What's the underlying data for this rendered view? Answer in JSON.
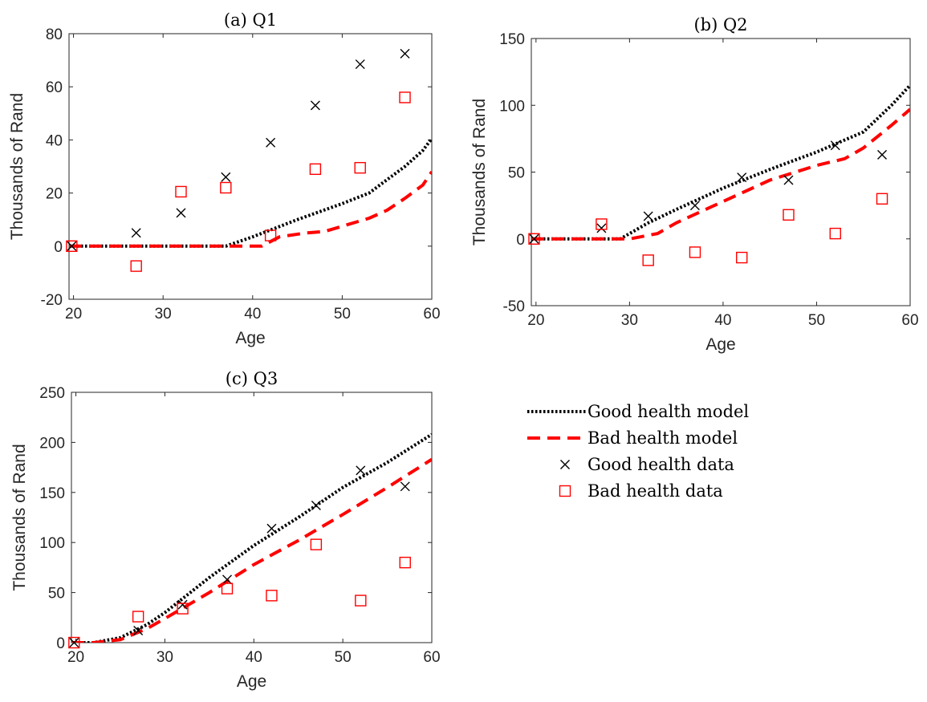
{
  "legend": [
    {
      "key": "good_model",
      "label": "Good health model",
      "style": "dotted",
      "color": "#000000"
    },
    {
      "key": "bad_model",
      "label": "Bad health model",
      "style": "dashed",
      "color": "#ff0000"
    },
    {
      "key": "good_data",
      "label": "Good health data",
      "marker": "x",
      "color": "#000000"
    },
    {
      "key": "bad_data",
      "label": "Bad health data",
      "marker": "square",
      "color": "#ff0000"
    }
  ],
  "chart_data": [
    {
      "type": "line",
      "title": "(a) Q1",
      "xlabel": "Age",
      "ylabel": "Thousands of Rand",
      "xlim": [
        19.5,
        60
      ],
      "ylim": [
        -20,
        80
      ],
      "xticks": [
        20,
        30,
        40,
        50,
        60
      ],
      "yticks": [
        -20,
        0,
        20,
        40,
        60,
        80
      ],
      "grid": false,
      "series": [
        {
          "name": "Good health model",
          "kind": "line",
          "x": [
            19.5,
            37,
            40,
            45,
            50,
            53,
            55,
            57,
            59,
            60
          ],
          "y": [
            0,
            0,
            3.5,
            10,
            16,
            20,
            25,
            30,
            36,
            40.5
          ]
        },
        {
          "name": "Bad health model",
          "kind": "line",
          "x": [
            19.5,
            41,
            43,
            46,
            48,
            50,
            53,
            55,
            57,
            59,
            60
          ],
          "y": [
            0,
            0,
            3.5,
            5,
            5.5,
            7.5,
            10.5,
            13.5,
            18,
            23,
            28
          ]
        },
        {
          "name": "Good health data",
          "kind": "scatter",
          "x": [
            19.8,
            27,
            32,
            37,
            42,
            47,
            52,
            57
          ],
          "y": [
            0,
            5,
            12.5,
            26,
            39,
            53,
            68.5,
            72.5
          ]
        },
        {
          "name": "Bad health data",
          "kind": "scatter",
          "x": [
            19.8,
            27,
            32,
            37,
            42,
            47,
            52,
            57
          ],
          "y": [
            0,
            -7.5,
            20.5,
            22,
            4,
            29,
            29.5,
            56
          ]
        }
      ]
    },
    {
      "type": "line",
      "title": "(b) Q2",
      "xlabel": "Age",
      "ylabel": "Thousands of Rand",
      "xlim": [
        19.5,
        60
      ],
      "ylim": [
        -50,
        150
      ],
      "xticks": [
        20,
        30,
        40,
        50,
        60
      ],
      "yticks": [
        -50,
        0,
        50,
        100,
        150
      ],
      "grid": false,
      "series": [
        {
          "name": "Good health model",
          "kind": "line",
          "x": [
            19.5,
            29,
            32,
            35,
            40,
            45,
            50,
            55,
            58,
            60
          ],
          "y": [
            0,
            0,
            12,
            22,
            38,
            52,
            65,
            80,
            100,
            115
          ]
        },
        {
          "name": "Bad health model",
          "kind": "line",
          "x": [
            19.5,
            30,
            33,
            35,
            40,
            45,
            50,
            53,
            55,
            58,
            60
          ],
          "y": [
            0,
            0,
            4,
            12,
            28,
            44,
            55,
            60,
            68,
            85,
            97
          ]
        },
        {
          "name": "Good health data",
          "kind": "scatter",
          "x": [
            19.8,
            27,
            32,
            37,
            42,
            47,
            52,
            57
          ],
          "y": [
            0,
            8,
            17,
            25,
            46,
            44,
            70,
            63
          ]
        },
        {
          "name": "Bad health data",
          "kind": "scatter",
          "x": [
            19.8,
            27,
            32,
            37,
            42,
            47,
            52,
            57
          ],
          "y": [
            0,
            11,
            -16,
            -10,
            -14,
            18,
            4,
            30
          ]
        }
      ]
    },
    {
      "type": "line",
      "title": "(c) Q3",
      "xlabel": "Age",
      "ylabel": "Thousands of Rand",
      "xlim": [
        19.5,
        60
      ],
      "ylim": [
        0,
        250
      ],
      "xticks": [
        20,
        30,
        40,
        50,
        60
      ],
      "yticks": [
        0,
        50,
        100,
        150,
        200,
        250
      ],
      "grid": false,
      "series": [
        {
          "name": "Good health model",
          "kind": "line",
          "x": [
            19.5,
            22,
            25,
            28,
            30,
            35,
            40,
            45,
            50,
            55,
            60
          ],
          "y": [
            0,
            0,
            5,
            18,
            30,
            65,
            97,
            125,
            155,
            180,
            208
          ]
        },
        {
          "name": "Bad health model",
          "kind": "line",
          "x": [
            19.5,
            22,
            25,
            28,
            30,
            35,
            40,
            45,
            50,
            55,
            60
          ],
          "y": [
            0,
            0,
            3,
            14,
            24,
            50,
            78,
            102,
            128,
            155,
            183
          ]
        },
        {
          "name": "Good health data",
          "kind": "scatter",
          "x": [
            19.8,
            27,
            32,
            37,
            42,
            47,
            52,
            57
          ],
          "y": [
            0,
            12,
            38,
            63,
            114,
            137,
            172,
            156
          ]
        },
        {
          "name": "Bad health data",
          "kind": "scatter",
          "x": [
            19.8,
            27,
            32,
            37,
            42,
            47,
            52,
            57
          ],
          "y": [
            0,
            26,
            34,
            54,
            47,
            98,
            42,
            80
          ]
        }
      ]
    }
  ]
}
